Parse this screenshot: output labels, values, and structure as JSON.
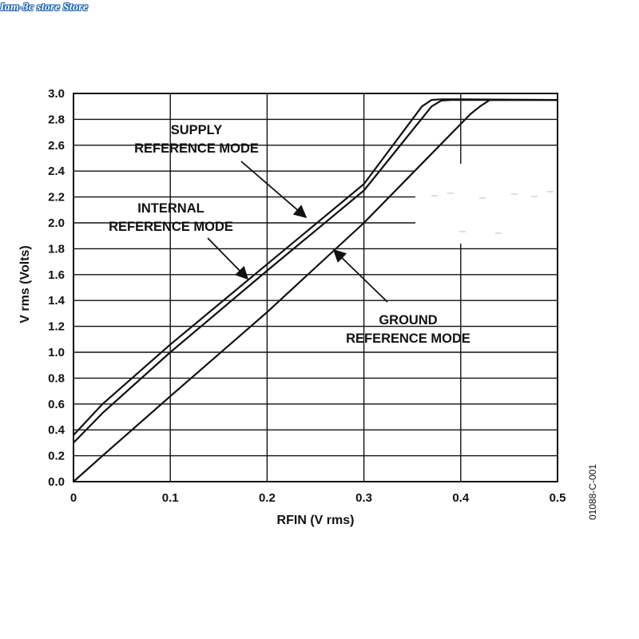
{
  "watermark": "Iam-3c store Store",
  "figure_id": "01088-C-001",
  "chart_data": {
    "type": "line",
    "title": "",
    "xlabel": "RFIN (V rms)",
    "ylabel": "V rms (Volts)",
    "xlim": [
      0,
      0.5
    ],
    "ylim": [
      0,
      3.0
    ],
    "x_ticks": [
      "0",
      "0.1",
      "0.2",
      "0.3",
      "0.4",
      "0.5"
    ],
    "y_ticks": [
      "0.0",
      "0.2",
      "0.4",
      "0.6",
      "0.8",
      "1.0",
      "1.2",
      "1.4",
      "1.6",
      "1.8",
      "2.0",
      "2.2",
      "2.4",
      "2.6",
      "2.8",
      "3.0"
    ],
    "grid": true,
    "series": [
      {
        "name": "SUPPLY REFERENCE MODE",
        "x": [
          0,
          0.03,
          0.1,
          0.2,
          0.3,
          0.36,
          0.37,
          0.38,
          0.4,
          0.5
        ],
        "y": [
          0.36,
          0.6,
          1.06,
          1.68,
          2.3,
          2.9,
          2.95,
          2.955,
          2.955,
          2.95
        ]
      },
      {
        "name": "INTERNAL REFERENCE MODE",
        "x": [
          0,
          0.03,
          0.1,
          0.2,
          0.3,
          0.37,
          0.38,
          0.39,
          0.4,
          0.5
        ],
        "y": [
          0.3,
          0.53,
          1.0,
          1.63,
          2.25,
          2.9,
          2.945,
          2.95,
          2.95,
          2.95
        ]
      },
      {
        "name": "GROUND REFERENCE MODE",
        "x": [
          0,
          0.03,
          0.1,
          0.2,
          0.3,
          0.41,
          0.42,
          0.43,
          0.5
        ],
        "y": [
          0,
          0.2,
          0.66,
          1.31,
          2.0,
          2.84,
          2.9,
          2.95,
          2.95
        ]
      }
    ],
    "annotations": [
      {
        "lines": [
          "SUPPLY",
          "REFERENCE MODE"
        ],
        "series": "SUPPLY REFERENCE MODE"
      },
      {
        "lines": [
          "INTERNAL",
          "REFERENCE MODE"
        ],
        "series": "INTERNAL REFERENCE MODE"
      },
      {
        "lines": [
          "GROUND",
          "REFERENCE MODE"
        ],
        "series": "GROUND REFERENCE MODE"
      }
    ]
  }
}
